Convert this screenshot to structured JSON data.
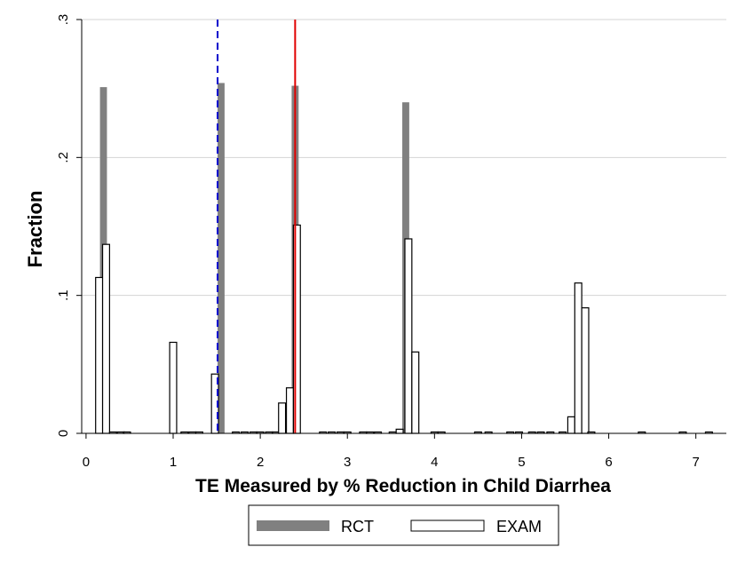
{
  "chart_data": {
    "type": "bar",
    "xlabel": "TE Measured by % Reduction in Child Diarrhea",
    "ylabel": "Fraction",
    "xlim": [
      -0.05,
      7.35
    ],
    "ylim": [
      0,
      0.3
    ],
    "x_ticks": [
      0,
      1,
      2,
      3,
      4,
      5,
      6,
      7
    ],
    "x_tick_labels": [
      "0",
      "1",
      "2",
      "3",
      "4",
      "5",
      "6",
      "7"
    ],
    "y_ticks": [
      0,
      0.1,
      0.2,
      0.3
    ],
    "y_tick_labels": [
      "0",
      ".1",
      ".2",
      ".3"
    ],
    "grid": true,
    "legend_position": "bottom",
    "reference_lines": [
      {
        "x": 1.51,
        "style": "dashed",
        "color": "#0000cc"
      },
      {
        "x": 2.4,
        "style": "solid",
        "color": "#e00000"
      }
    ],
    "series": [
      {
        "name": "RCT",
        "style": "filled",
        "color": "#808080",
        "bar_width": 0.08,
        "x": [
          0.2,
          1.55,
          2.4,
          3.67
        ],
        "values": [
          0.251,
          0.254,
          0.252,
          0.24
        ]
      },
      {
        "name": "EXAM",
        "style": "outline",
        "color": "#000000",
        "bar_width": 0.08,
        "x": [
          0.15,
          0.23,
          0.31,
          0.4,
          0.47,
          1.0,
          1.13,
          1.22,
          1.3,
          1.48,
          1.72,
          1.82,
          1.92,
          2.0,
          2.1,
          2.18,
          2.25,
          2.34,
          2.42,
          2.72,
          2.82,
          2.92,
          3.0,
          3.18,
          3.26,
          3.35,
          3.52,
          3.6,
          3.7,
          3.78,
          4.0,
          4.08,
          4.5,
          4.62,
          4.87,
          4.97,
          5.12,
          5.22,
          5.33,
          5.47,
          5.57,
          5.65,
          5.73,
          5.8,
          6.38,
          6.85,
          7.15
        ],
        "values": [
          0.113,
          0.137,
          0.001,
          0.001,
          0.001,
          0.066,
          0.001,
          0.001,
          0.001,
          0.043,
          0.001,
          0.001,
          0.001,
          0.001,
          0.001,
          0.001,
          0.022,
          0.033,
          0.151,
          0.001,
          0.001,
          0.001,
          0.001,
          0.001,
          0.001,
          0.001,
          0.001,
          0.003,
          0.141,
          0.059,
          0.001,
          0.001,
          0.001,
          0.001,
          0.001,
          0.001,
          0.001,
          0.001,
          0.001,
          0.001,
          0.012,
          0.109,
          0.091,
          0.001,
          0.001,
          0.001,
          0.001
        ]
      }
    ]
  }
}
